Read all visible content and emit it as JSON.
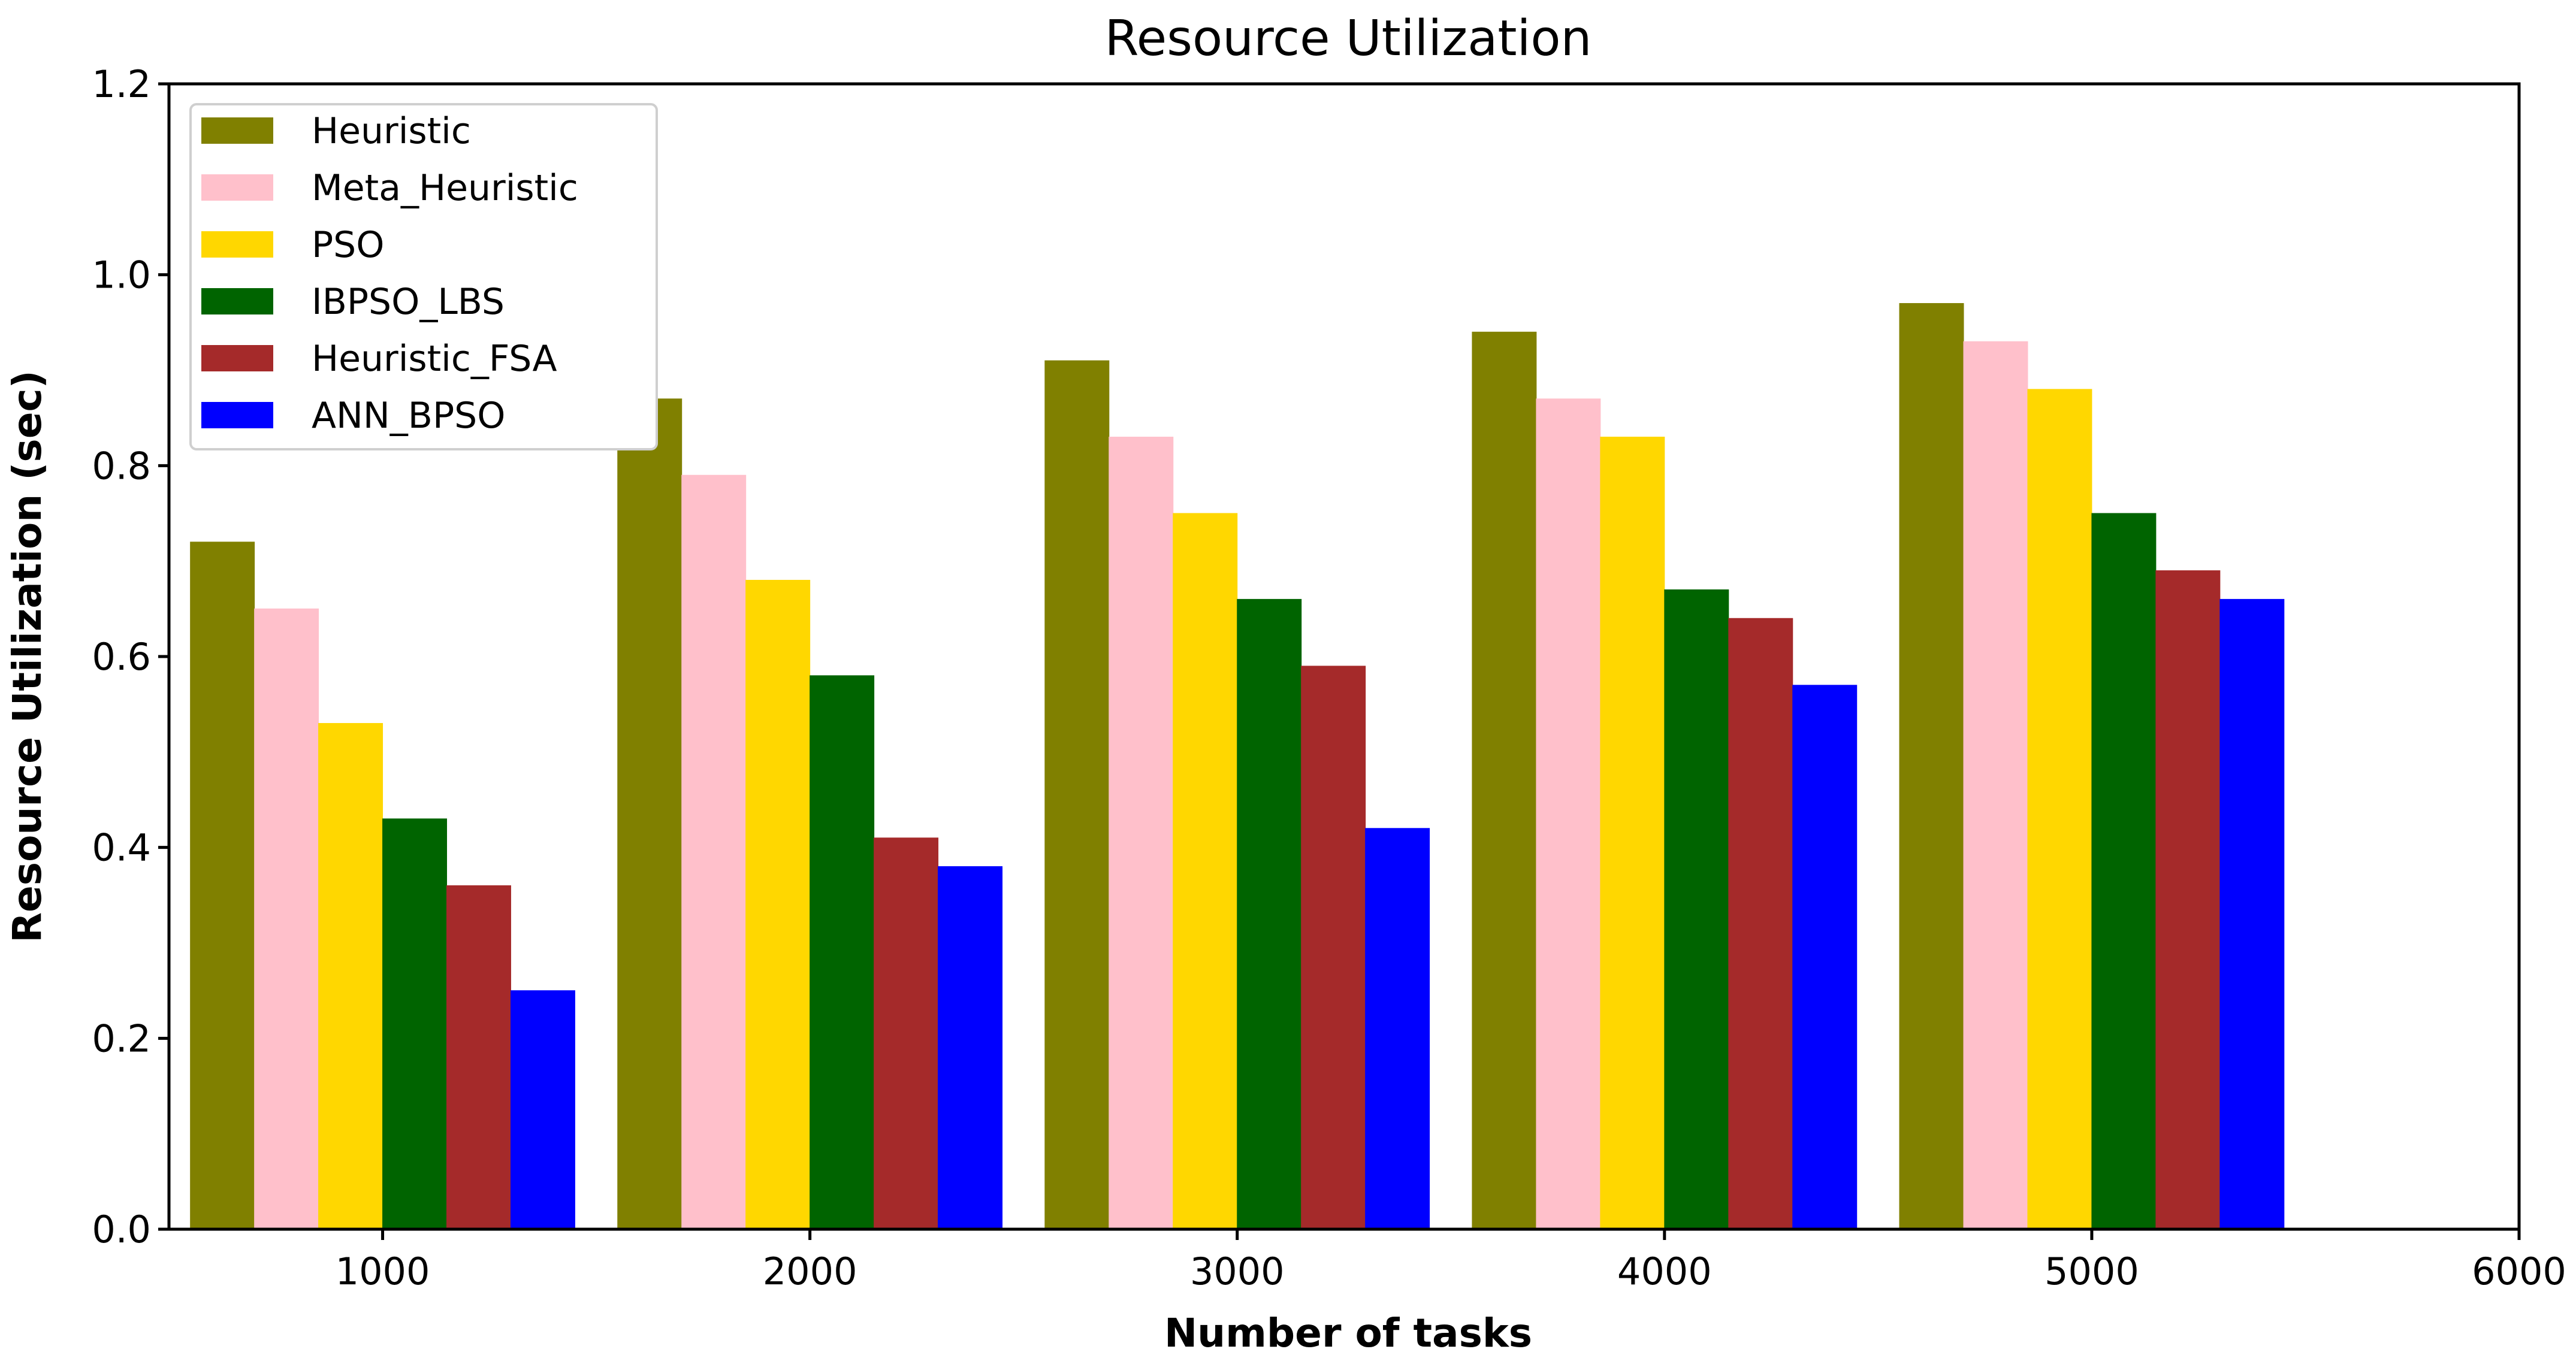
{
  "chart_data": {
    "type": "bar",
    "title": "Resource Utilization",
    "xlabel": "Number of tasks",
    "ylabel": "Resource Utilization (sec)",
    "categories": [
      1000,
      2000,
      3000,
      4000,
      5000
    ],
    "xlim": [
      500,
      6000
    ],
    "xticks": [
      "1000",
      "2000",
      "3000",
      "4000",
      "5000",
      "6000"
    ],
    "ylim": [
      0.0,
      1.2
    ],
    "yticks": [
      "0.0",
      "0.2",
      "0.4",
      "0.6",
      "0.8",
      "1.0",
      "1.2"
    ],
    "grid": false,
    "legend_position": "top-left",
    "series": [
      {
        "name": "Heuristic",
        "color": "#808000",
        "values": [
          0.72,
          0.87,
          0.91,
          0.94,
          0.97
        ]
      },
      {
        "name": "Meta_Heuristic",
        "color": "#FFC0CB",
        "values": [
          0.65,
          0.79,
          0.83,
          0.87,
          0.93
        ]
      },
      {
        "name": "PSO",
        "color": "#FFD700",
        "values": [
          0.53,
          0.68,
          0.75,
          0.83,
          0.88
        ]
      },
      {
        "name": "IBPSO_LBS",
        "color": "#006400",
        "values": [
          0.43,
          0.58,
          0.66,
          0.67,
          0.75
        ]
      },
      {
        "name": "Heuristic_FSA",
        "color": "#A52A2A",
        "values": [
          0.36,
          0.41,
          0.59,
          0.64,
          0.69
        ]
      },
      {
        "name": "ANN_BPSO",
        "color": "#0000FF",
        "values": [
          0.25,
          0.38,
          0.42,
          0.57,
          0.66
        ]
      }
    ]
  }
}
